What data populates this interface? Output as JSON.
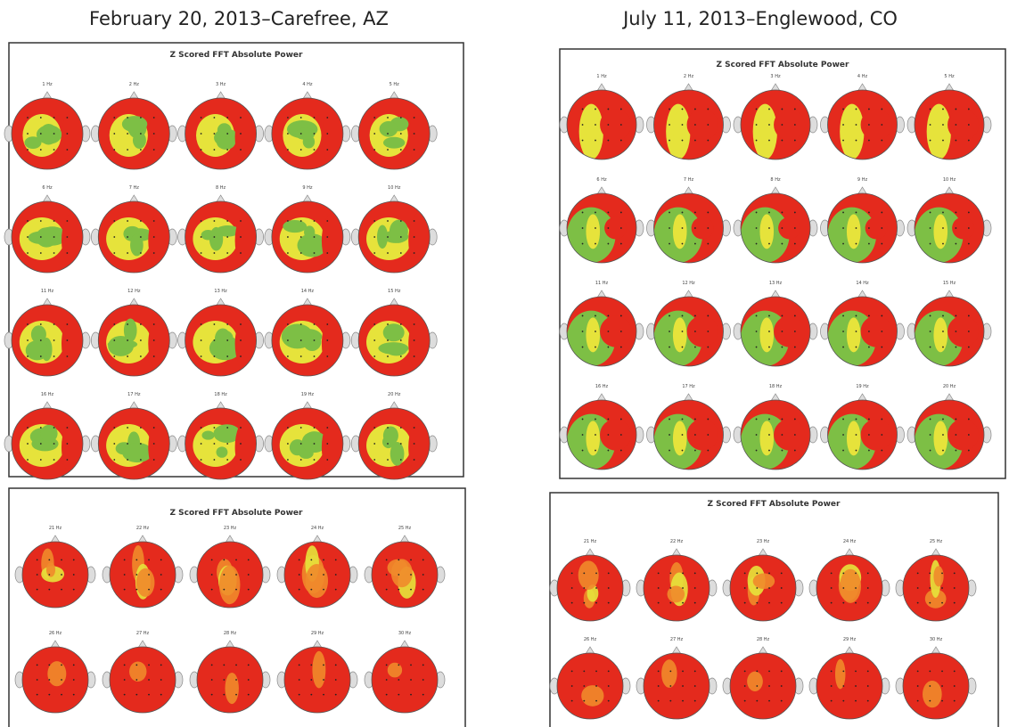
{
  "panels": [
    {
      "heading": "February 20, 2013–Carefree, AZ",
      "maps": [
        {
          "title": "Z Scored FFT Absolute Power",
          "labels": [
            "1 Hz",
            "2 Hz",
            "3 Hz",
            "4 Hz",
            "5 Hz",
            "6 Hz",
            "7 Hz",
            "8 Hz",
            "9 Hz",
            "10 Hz",
            "11 Hz",
            "12 Hz",
            "13 Hz",
            "14 Hz",
            "15 Hz",
            "16 Hz",
            "17 Hz",
            "18 Hz",
            "19 Hz",
            "20 Hz"
          ]
        },
        {
          "title": "Z Scored FFT Absolute Power",
          "labels": [
            "21 Hz",
            "22 Hz",
            "23 Hz",
            "24 Hz",
            "25 Hz",
            "26 Hz",
            "27 Hz",
            "28 Hz",
            "29 Hz",
            "30 Hz"
          ]
        }
      ]
    },
    {
      "heading": "July 11, 2013–Englewood, CO",
      "maps": [
        {
          "title": "Z Scored FFT Absolute Power",
          "labels": [
            "1 Hz",
            "2 Hz",
            "3 Hz",
            "4 Hz",
            "5 Hz",
            "6 Hz",
            "7 Hz",
            "8 Hz",
            "9 Hz",
            "10 Hz",
            "11 Hz",
            "12 Hz",
            "13 Hz",
            "14 Hz",
            "15 Hz",
            "16 Hz",
            "17 Hz",
            "18 Hz",
            "19 Hz",
            "20 Hz"
          ]
        },
        {
          "title": "Z Scored FFT Absolute Power",
          "labels": [
            "21 Hz",
            "22 Hz",
            "23 Hz",
            "24 Hz",
            "25 Hz",
            "26 Hz",
            "27 Hz",
            "28 Hz",
            "29 Hz",
            "30 Hz"
          ]
        }
      ]
    }
  ]
}
